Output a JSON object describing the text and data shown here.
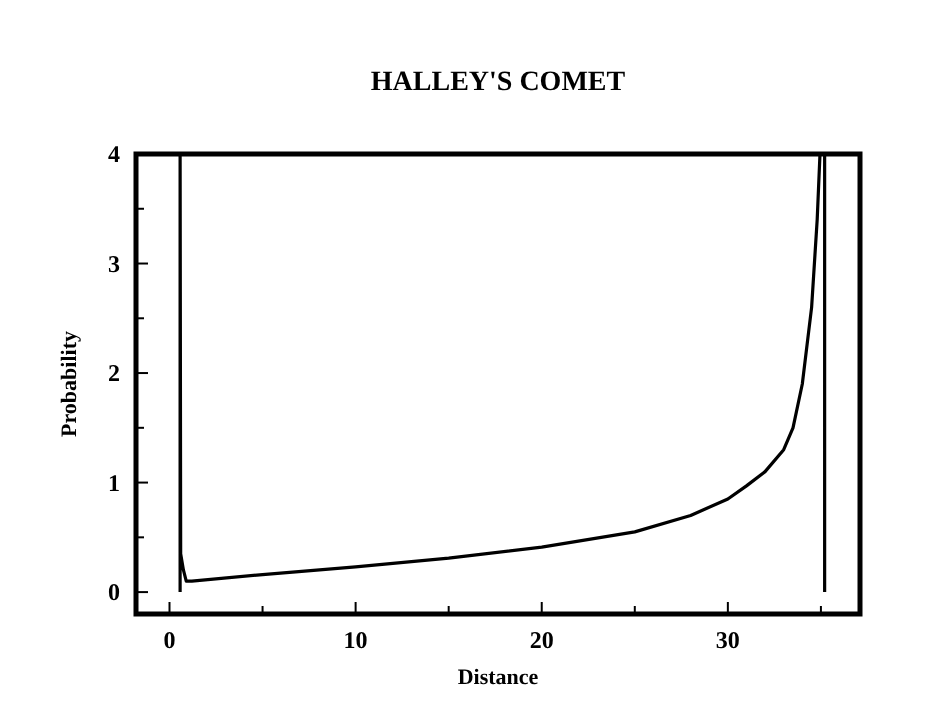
{
  "chart_data": {
    "type": "line",
    "title": "HALLEY'S COMET",
    "xlabel": "Distance",
    "ylabel": "Probability",
    "x": [
      0.57,
      0.57,
      0.6,
      0.75,
      0.9,
      1.2,
      5,
      10,
      15,
      20,
      25,
      28,
      30,
      31,
      32,
      33,
      33.5,
      34,
      34.5,
      34.8,
      34.95,
      35.2,
      35.2
    ],
    "series": [
      {
        "color": "#000000",
        "values": [
          0,
          4,
          0.35,
          0.2,
          0.1,
          0.1,
          0.16,
          0.23,
          0.31,
          0.41,
          0.55,
          0.7,
          0.85,
          0.97,
          1.1,
          1.3,
          1.5,
          1.9,
          2.6,
          3.4,
          4,
          4,
          0
        ]
      }
    ],
    "xlim": [
      -1.8,
      37.1
    ],
    "ylim": [
      -0.2,
      4
    ],
    "xticks": [
      0,
      {
        "value": 5,
        "label": null
      },
      10,
      {
        "value": 15,
        "label": null
      },
      20,
      {
        "value": 25,
        "label": null
      },
      30,
      {
        "value": 35,
        "label": null
      }
    ],
    "yticks": [
      0,
      {
        "value": 0.5,
        "label": null
      },
      1,
      {
        "value": 1.5,
        "label": null
      },
      2,
      {
        "value": 2.5,
        "label": null
      },
      3,
      {
        "value": 3.5,
        "label": null
      },
      4
    ],
    "grid": false,
    "marker": "none",
    "line_style": "solid"
  }
}
